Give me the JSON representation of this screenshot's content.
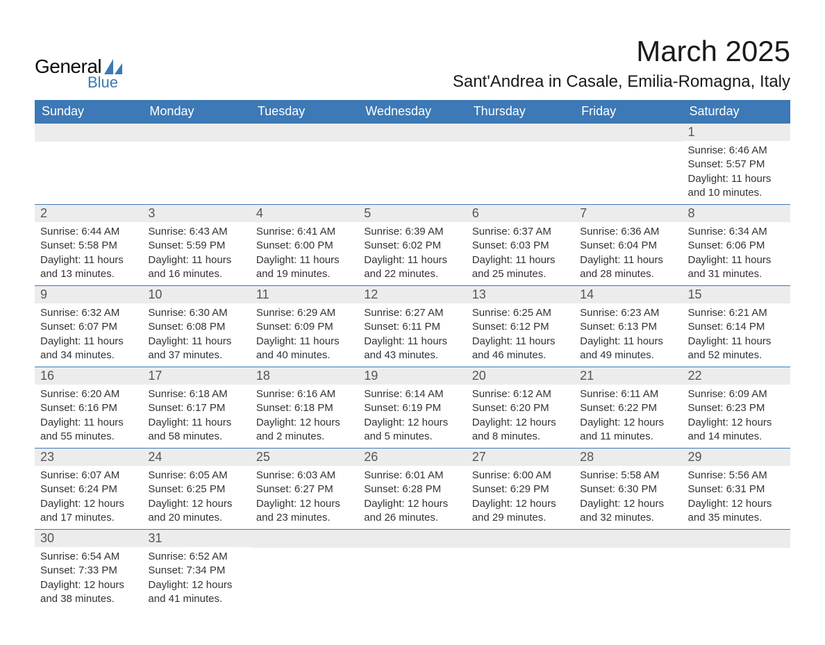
{
  "logo": {
    "text1": "General",
    "text2": "Blue",
    "sail_color": "#3c79b6"
  },
  "title": {
    "month": "March 2025",
    "location": "Sant'Andrea in Casale, Emilia-Romagna, Italy"
  },
  "colors": {
    "header_bg": "#3c79b6",
    "header_text": "#ffffff",
    "daynum_bg": "#ececec",
    "daynum_text": "#555555",
    "body_text": "#333333",
    "rule": "#3c79b6"
  },
  "fonts": {
    "title_size": 42,
    "location_size": 24,
    "dayhead_size": 18,
    "daynum_size": 18,
    "body_size": 15
  },
  "day_headers": [
    "Sunday",
    "Monday",
    "Tuesday",
    "Wednesday",
    "Thursday",
    "Friday",
    "Saturday"
  ],
  "weeks": [
    [
      null,
      null,
      null,
      null,
      null,
      null,
      {
        "n": "1",
        "sunrise": "6:46 AM",
        "sunset": "5:57 PM",
        "day_h": "11",
        "day_m": "10"
      }
    ],
    [
      {
        "n": "2",
        "sunrise": "6:44 AM",
        "sunset": "5:58 PM",
        "day_h": "11",
        "day_m": "13"
      },
      {
        "n": "3",
        "sunrise": "6:43 AM",
        "sunset": "5:59 PM",
        "day_h": "11",
        "day_m": "16"
      },
      {
        "n": "4",
        "sunrise": "6:41 AM",
        "sunset": "6:00 PM",
        "day_h": "11",
        "day_m": "19"
      },
      {
        "n": "5",
        "sunrise": "6:39 AM",
        "sunset": "6:02 PM",
        "day_h": "11",
        "day_m": "22"
      },
      {
        "n": "6",
        "sunrise": "6:37 AM",
        "sunset": "6:03 PM",
        "day_h": "11",
        "day_m": "25"
      },
      {
        "n": "7",
        "sunrise": "6:36 AM",
        "sunset": "6:04 PM",
        "day_h": "11",
        "day_m": "28"
      },
      {
        "n": "8",
        "sunrise": "6:34 AM",
        "sunset": "6:06 PM",
        "day_h": "11",
        "day_m": "31"
      }
    ],
    [
      {
        "n": "9",
        "sunrise": "6:32 AM",
        "sunset": "6:07 PM",
        "day_h": "11",
        "day_m": "34"
      },
      {
        "n": "10",
        "sunrise": "6:30 AM",
        "sunset": "6:08 PM",
        "day_h": "11",
        "day_m": "37"
      },
      {
        "n": "11",
        "sunrise": "6:29 AM",
        "sunset": "6:09 PM",
        "day_h": "11",
        "day_m": "40"
      },
      {
        "n": "12",
        "sunrise": "6:27 AM",
        "sunset": "6:11 PM",
        "day_h": "11",
        "day_m": "43"
      },
      {
        "n": "13",
        "sunrise": "6:25 AM",
        "sunset": "6:12 PM",
        "day_h": "11",
        "day_m": "46"
      },
      {
        "n": "14",
        "sunrise": "6:23 AM",
        "sunset": "6:13 PM",
        "day_h": "11",
        "day_m": "49"
      },
      {
        "n": "15",
        "sunrise": "6:21 AM",
        "sunset": "6:14 PM",
        "day_h": "11",
        "day_m": "52"
      }
    ],
    [
      {
        "n": "16",
        "sunrise": "6:20 AM",
        "sunset": "6:16 PM",
        "day_h": "11",
        "day_m": "55"
      },
      {
        "n": "17",
        "sunrise": "6:18 AM",
        "sunset": "6:17 PM",
        "day_h": "11",
        "day_m": "58"
      },
      {
        "n": "18",
        "sunrise": "6:16 AM",
        "sunset": "6:18 PM",
        "day_h": "12",
        "day_m": "2"
      },
      {
        "n": "19",
        "sunrise": "6:14 AM",
        "sunset": "6:19 PM",
        "day_h": "12",
        "day_m": "5"
      },
      {
        "n": "20",
        "sunrise": "6:12 AM",
        "sunset": "6:20 PM",
        "day_h": "12",
        "day_m": "8"
      },
      {
        "n": "21",
        "sunrise": "6:11 AM",
        "sunset": "6:22 PM",
        "day_h": "12",
        "day_m": "11"
      },
      {
        "n": "22",
        "sunrise": "6:09 AM",
        "sunset": "6:23 PM",
        "day_h": "12",
        "day_m": "14"
      }
    ],
    [
      {
        "n": "23",
        "sunrise": "6:07 AM",
        "sunset": "6:24 PM",
        "day_h": "12",
        "day_m": "17"
      },
      {
        "n": "24",
        "sunrise": "6:05 AM",
        "sunset": "6:25 PM",
        "day_h": "12",
        "day_m": "20"
      },
      {
        "n": "25",
        "sunrise": "6:03 AM",
        "sunset": "6:27 PM",
        "day_h": "12",
        "day_m": "23"
      },
      {
        "n": "26",
        "sunrise": "6:01 AM",
        "sunset": "6:28 PM",
        "day_h": "12",
        "day_m": "26"
      },
      {
        "n": "27",
        "sunrise": "6:00 AM",
        "sunset": "6:29 PM",
        "day_h": "12",
        "day_m": "29"
      },
      {
        "n": "28",
        "sunrise": "5:58 AM",
        "sunset": "6:30 PM",
        "day_h": "12",
        "day_m": "32"
      },
      {
        "n": "29",
        "sunrise": "5:56 AM",
        "sunset": "6:31 PM",
        "day_h": "12",
        "day_m": "35"
      }
    ],
    [
      {
        "n": "30",
        "sunrise": "6:54 AM",
        "sunset": "7:33 PM",
        "day_h": "12",
        "day_m": "38"
      },
      {
        "n": "31",
        "sunrise": "6:52 AM",
        "sunset": "7:34 PM",
        "day_h": "12",
        "day_m": "41"
      },
      null,
      null,
      null,
      null,
      null
    ]
  ],
  "labels": {
    "sunrise_prefix": "Sunrise: ",
    "sunset_prefix": "Sunset: ",
    "daylight_prefix": "Daylight: ",
    "hours_word": " hours",
    "and_word": "and ",
    "minutes_word": " minutes."
  }
}
